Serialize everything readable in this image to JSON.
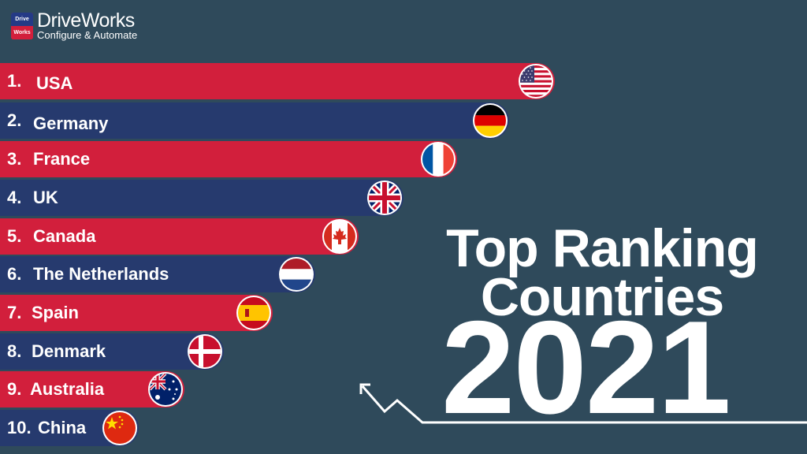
{
  "logo": {
    "badge_top": "Drive",
    "badge_bottom": "Works",
    "title": "DriveWorks",
    "subtitle": "Configure & Automate"
  },
  "headline": {
    "line1": "Top Ranking",
    "line2": "Countries",
    "year": "2021"
  },
  "countries": [
    {
      "rank": "1.",
      "name": "USA",
      "flag": "usa-flag",
      "color": "#d21f3c"
    },
    {
      "rank": "2.",
      "name": "Germany",
      "flag": "germany-flag",
      "color": "#263a6e"
    },
    {
      "rank": "3.",
      "name": "France",
      "flag": "france-flag",
      "color": "#d21f3c"
    },
    {
      "rank": "4.",
      "name": "UK",
      "flag": "uk-flag",
      "color": "#263a6e"
    },
    {
      "rank": "5.",
      "name": "Canada",
      "flag": "canada-flag",
      "color": "#d21f3c"
    },
    {
      "rank": "6.",
      "name": "The Netherlands",
      "flag": "netherlands-flag",
      "color": "#263a6e"
    },
    {
      "rank": "7.",
      "name": "Spain",
      "flag": "spain-flag",
      "color": "#d21f3c"
    },
    {
      "rank": "8.",
      "name": "Denmark",
      "flag": "denmark-flag",
      "color": "#263a6e"
    },
    {
      "rank": "9.",
      "name": "Australia",
      "flag": "australia-flag",
      "color": "#d21f3c"
    },
    {
      "rank": "10.",
      "name": "China",
      "flag": "china-flag",
      "color": "#263a6e"
    }
  ]
}
